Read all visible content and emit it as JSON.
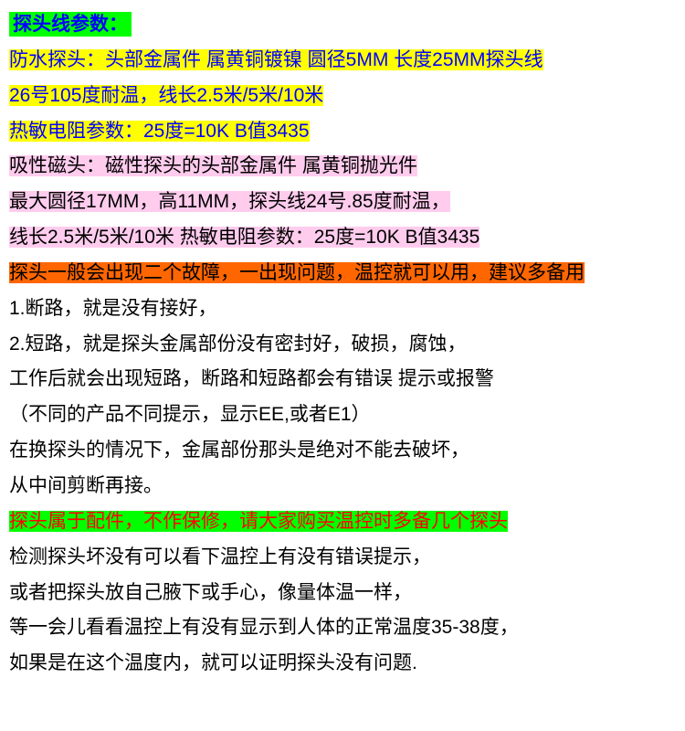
{
  "title": "探头线参数：",
  "yellow": {
    "l1": "防水探头：头部金属件 属黄铜镀镍 圆径5MM 长度25MM探头线",
    "l2": "26号105度耐温，线长2.5米/5米/10米",
    "l3": "热敏电阻参数：25度=10K  B值3435"
  },
  "pink": {
    "l1": "吸性磁头：磁性探头的头部金属件 属黄铜抛光件",
    "l2": "最大圆径17MM，高11MM，探头线24号.85度耐温，",
    "l3": "线长2.5米/5米/10米   热敏电阻参数：25度=10K  B值3435"
  },
  "orange": {
    "l1": "探头一般会出现二个故障，一出现问题，温控就可以用，建议多备用"
  },
  "body1": {
    "l1": "1.断路，就是没有接好，",
    "l2": "2.短路，就是探头金属部份没有密封好，破损，腐蚀，",
    "l3": "工作后就会出现短路，断路和短路都会有错误 提示或报警",
    "l4": "（不同的产品不同提示，显示EE,或者E1）",
    "l5": "在换探头的情况下，金属部份那头是绝对不能去破坏，",
    "l6": "从中间剪断再接。"
  },
  "greenred": {
    "l1": "探头属于配件，不作保修，请大家购买温控时多备几个探头"
  },
  "body2": {
    "l1": "检测探头坏没有可以看下温控上有没有错误提示，",
    "l2": "或者把探头放自己腋下或手心，像量体温一样，",
    "l3": "等一会儿看看温控上有没有显示到人体的正常温度35-38度，",
    "l4": "如果是在这个温度内，就可以证明探头没有问题."
  }
}
